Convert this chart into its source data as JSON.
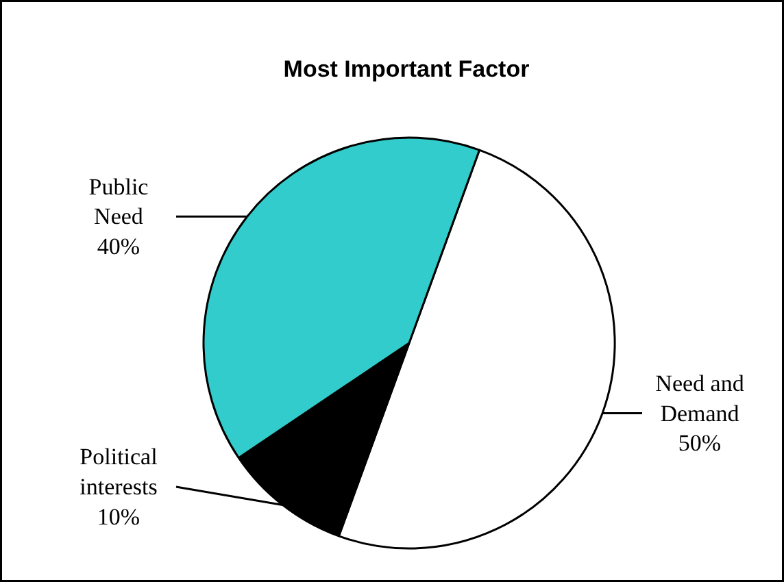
{
  "chart_data": {
    "type": "pie",
    "title": "Most Important Factor",
    "categories": [
      "Need and Demand",
      "Political interests",
      "Public Need"
    ],
    "values": [
      50,
      10,
      40
    ],
    "colors": [
      "#ffffff",
      "#000000",
      "#33cccc"
    ],
    "value_labels": [
      "50%",
      "10%",
      "40%"
    ]
  }
}
